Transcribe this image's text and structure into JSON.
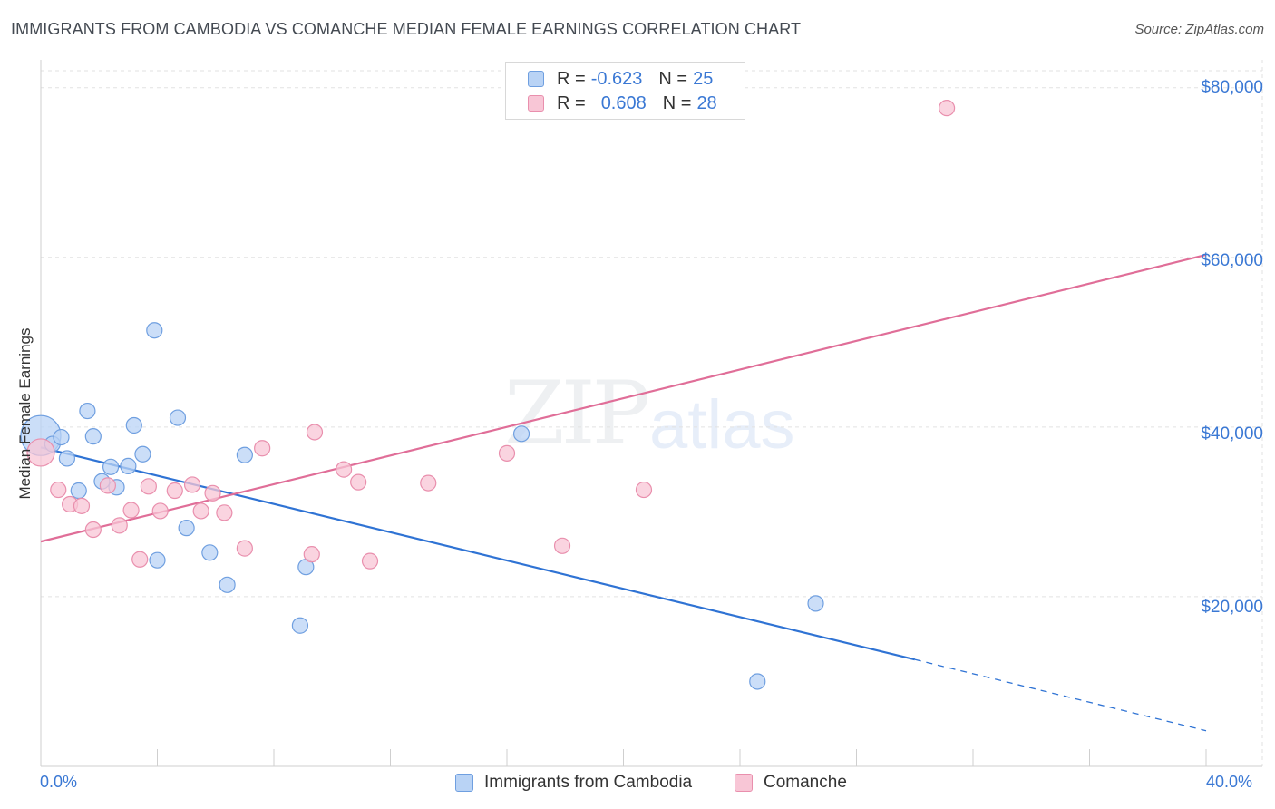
{
  "header": {
    "title": "IMMIGRANTS FROM CAMBODIA VS COMANCHE MEDIAN FEMALE EARNINGS CORRELATION CHART",
    "source": "Source: ZipAtlas.com"
  },
  "watermark": {
    "zip": "ZIP",
    "atlas": "atlas"
  },
  "legend": {
    "rows": [
      {
        "r_label": "R =",
        "r_value": "-0.623",
        "n_label": "N =",
        "n_value": "25"
      },
      {
        "r_label": "R =",
        "r_value": "0.608",
        "n_label": "N =",
        "n_value": "28"
      }
    ]
  },
  "colors": {
    "cambodia_fill": "#b9d3f5",
    "cambodia_stroke": "#6f9fe0",
    "cambodia_line": "#2f73d4",
    "comanche_fill": "#f8c6d6",
    "comanche_stroke": "#e98fad",
    "comanche_line": "#e06e98",
    "grid": "#e2e2e2",
    "tick_text": "#3a78d4"
  },
  "chart_data": {
    "type": "scatter",
    "title": "IMMIGRANTS FROM CAMBODIA VS COMANCHE MEDIAN FEMALE EARNINGS CORRELATION CHART",
    "xlabel": "",
    "ylabel": "Median Female Earnings",
    "xlim": [
      0,
      40
    ],
    "ylim": [
      0,
      82000
    ],
    "x_tick_labels": [
      "0.0%",
      "40.0%"
    ],
    "y_ticks": [
      20000,
      40000,
      60000,
      80000
    ],
    "y_tick_labels": [
      "$20,000",
      "$40,000",
      "$60,000",
      "$80,000"
    ],
    "grid": true,
    "legend_position": "top-center",
    "series": [
      {
        "name": "Immigrants from Cambodia",
        "points": [
          [
            0.0,
            39000
          ],
          [
            0.4,
            38000
          ],
          [
            0.7,
            38800
          ],
          [
            0.9,
            36300
          ],
          [
            1.3,
            32500
          ],
          [
            1.6,
            41900
          ],
          [
            1.8,
            38900
          ],
          [
            2.1,
            33600
          ],
          [
            2.4,
            35300
          ],
          [
            2.6,
            32900
          ],
          [
            3.0,
            35400
          ],
          [
            3.2,
            40200
          ],
          [
            3.5,
            36800
          ],
          [
            3.9,
            51400
          ],
          [
            4.0,
            24300
          ],
          [
            4.7,
            41100
          ],
          [
            5.0,
            28100
          ],
          [
            5.8,
            25200
          ],
          [
            6.4,
            21400
          ],
          [
            7.0,
            36700
          ],
          [
            8.9,
            16600
          ],
          [
            9.1,
            23500
          ],
          [
            16.5,
            39200
          ],
          [
            24.6,
            10000
          ],
          [
            26.6,
            19200
          ]
        ],
        "trend": {
          "x0": 0.0,
          "y0": 37600,
          "x1": 30.0,
          "y1": 12600,
          "dash_to_x": 40.0,
          "dash_to_y": 4200
        }
      },
      {
        "name": "Comanche",
        "points": [
          [
            0.0,
            37000
          ],
          [
            0.6,
            32600
          ],
          [
            1.0,
            30900
          ],
          [
            1.4,
            30700
          ],
          [
            1.8,
            27900
          ],
          [
            2.3,
            33100
          ],
          [
            2.7,
            28400
          ],
          [
            3.1,
            30200
          ],
          [
            3.4,
            24400
          ],
          [
            3.7,
            33000
          ],
          [
            4.1,
            30100
          ],
          [
            4.6,
            32500
          ],
          [
            5.2,
            33200
          ],
          [
            5.5,
            30100
          ],
          [
            5.9,
            32200
          ],
          [
            6.3,
            29900
          ],
          [
            7.0,
            25700
          ],
          [
            7.6,
            37500
          ],
          [
            9.3,
            25000
          ],
          [
            9.4,
            39400
          ],
          [
            10.4,
            35000
          ],
          [
            10.9,
            33500
          ],
          [
            11.3,
            24200
          ],
          [
            13.3,
            33400
          ],
          [
            16.0,
            36900
          ],
          [
            17.9,
            26000
          ],
          [
            20.7,
            32600
          ],
          [
            31.1,
            77600
          ]
        ],
        "trend": {
          "x0": 0.0,
          "y0": 26500,
          "x1": 40.0,
          "y1": 60300
        }
      }
    ]
  },
  "bottom_legend": {
    "cambodia": "Immigrants from Cambodia",
    "comanche": "Comanche"
  }
}
